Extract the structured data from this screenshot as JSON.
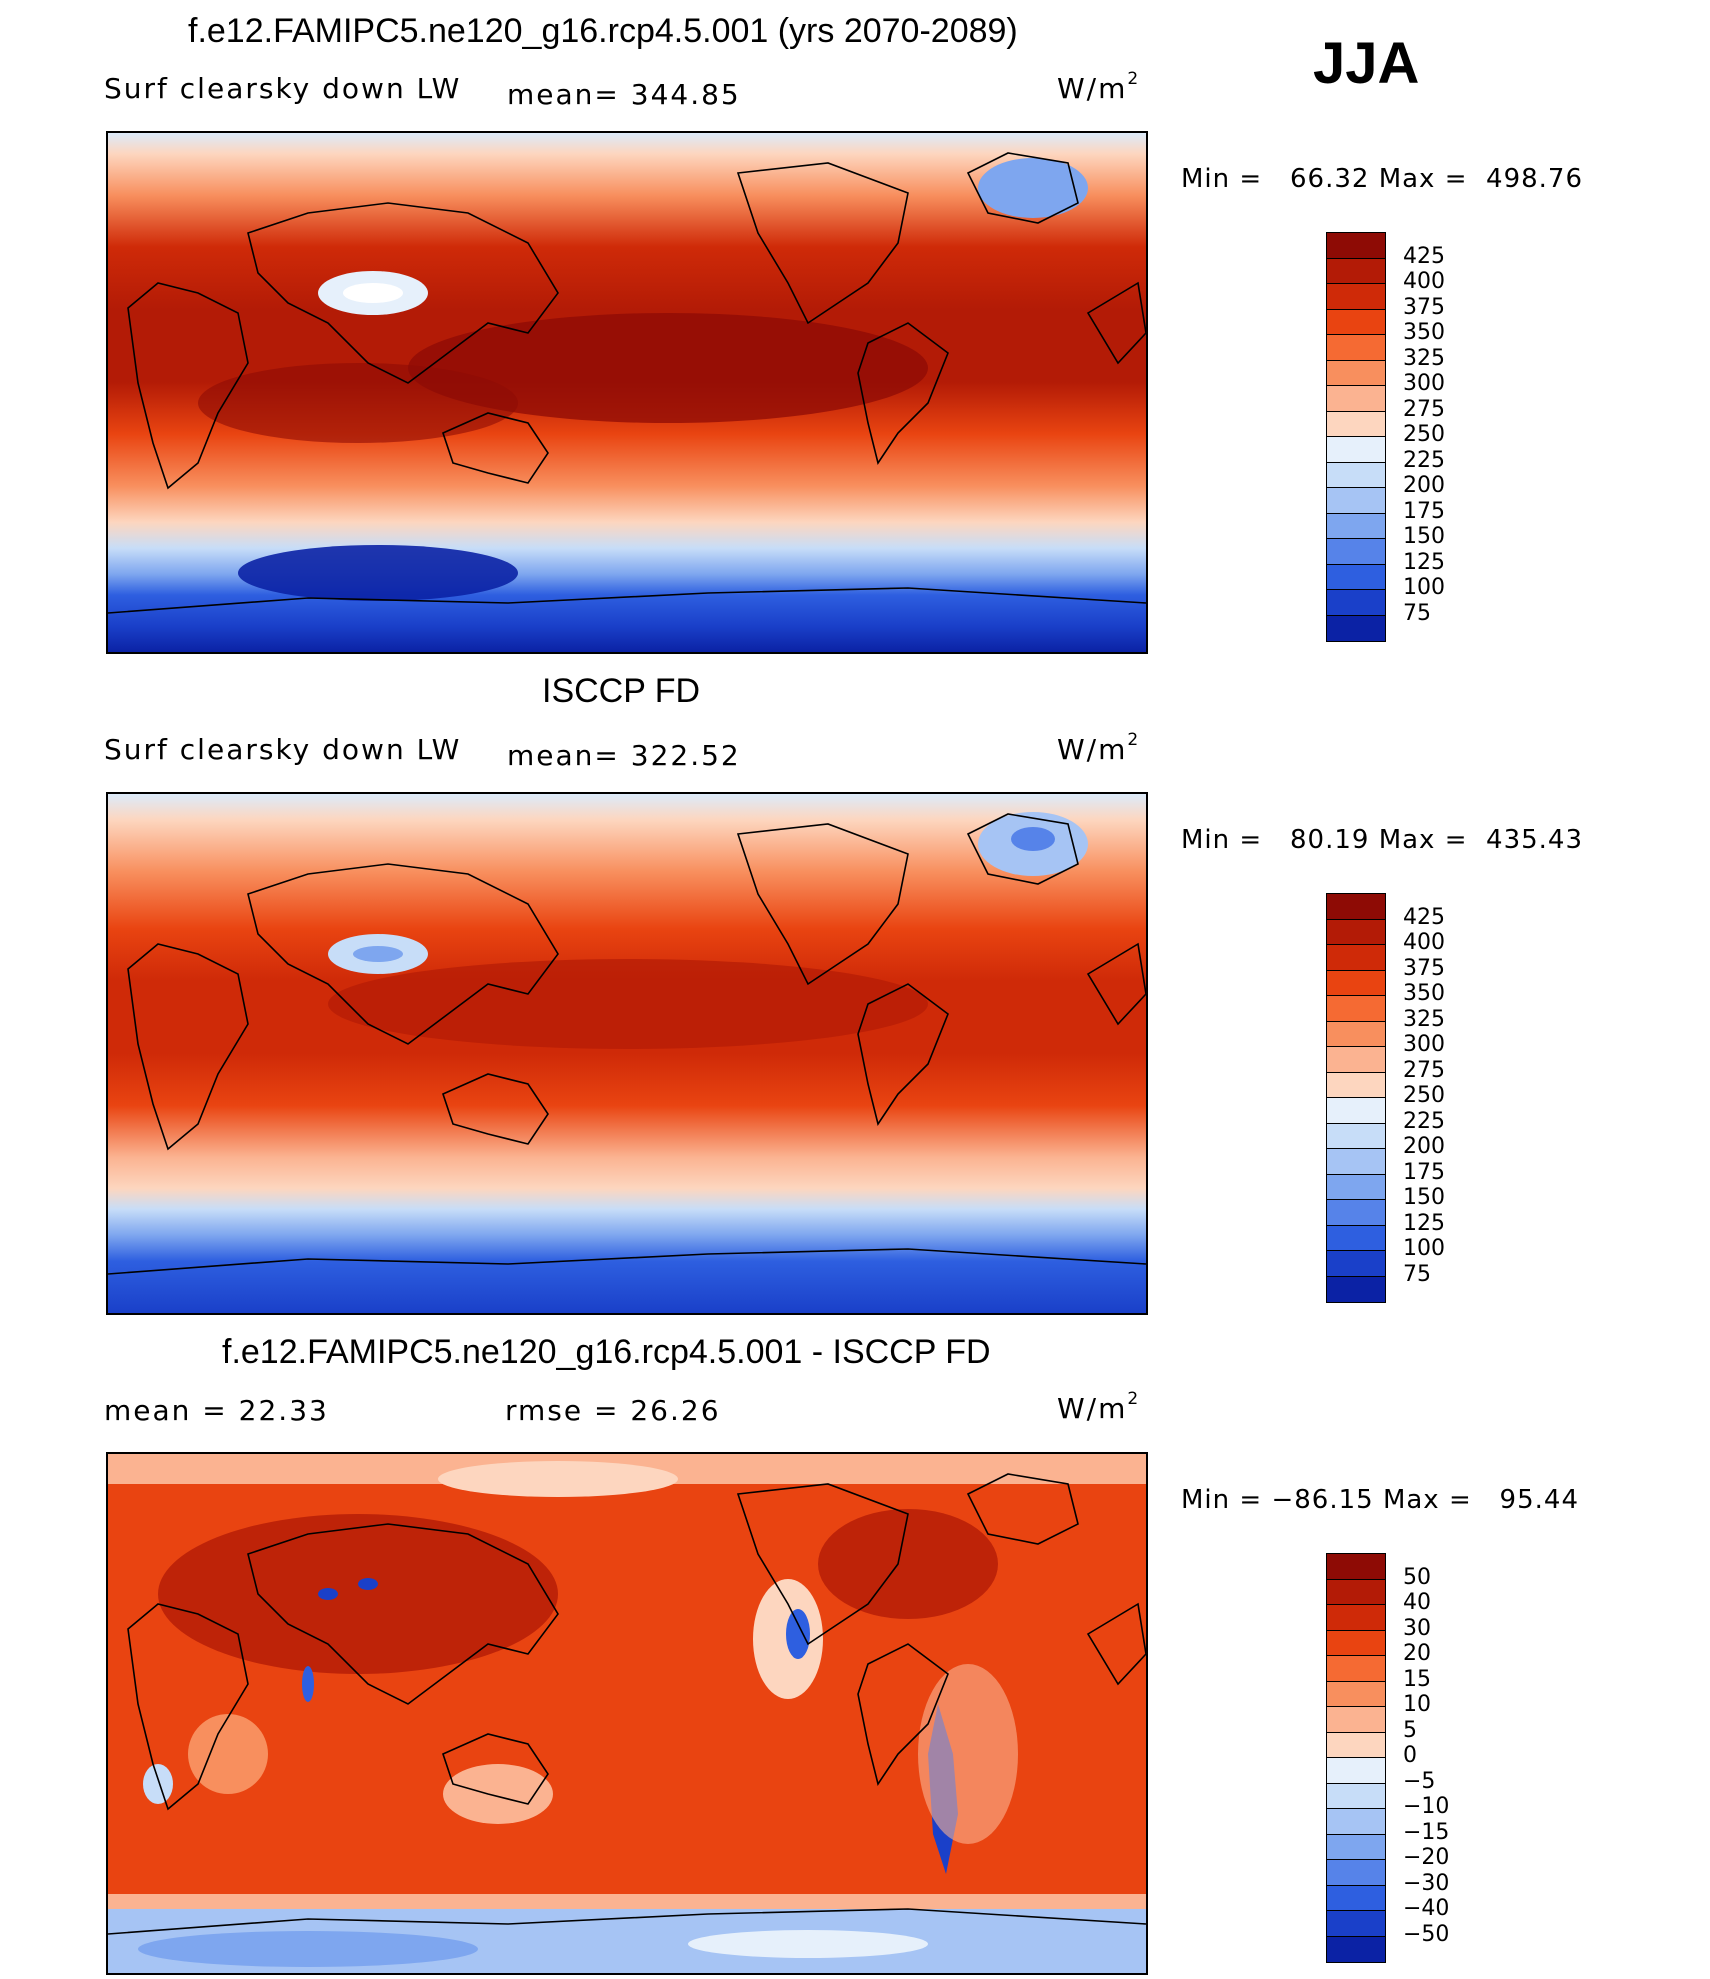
{
  "season": "JJA",
  "panels": [
    {
      "title": "f.e12.FAMIPC5.ne120_g16.rcp4.5.001 (yrs 2070-2089)",
      "left_label": "Surf clearsky down LW",
      "center_label": "mean= 344.85",
      "units_base": "W/m",
      "units_exp": "2",
      "min_label": "Min =",
      "min_value": "66.32",
      "max_label": "Max =",
      "max_value": "498.76",
      "colorbar_labels": [
        "425",
        "400",
        "375",
        "350",
        "325",
        "300",
        "275",
        "250",
        "225",
        "200",
        "175",
        "150",
        "125",
        "100",
        "75"
      ],
      "colorbar_colors": [
        "#8e0b05",
        "#b31b06",
        "#cf2a08",
        "#e94411",
        "#f56a33",
        "#f88f5e",
        "#fbb391",
        "#fdd6bf",
        "#e6f0fb",
        "#c7ddf8",
        "#a6c4f4",
        "#7ea6ef",
        "#5683e9",
        "#2e5fe0",
        "#1a40c9",
        "#0b22a5"
      ]
    },
    {
      "title": "ISCCP FD",
      "left_label": "Surf clearsky down LW",
      "center_label": "mean= 322.52",
      "units_base": "W/m",
      "units_exp": "2",
      "min_label": "Min =",
      "min_value": "80.19",
      "max_label": "Max =",
      "max_value": "435.43",
      "colorbar_labels": [
        "425",
        "400",
        "375",
        "350",
        "325",
        "300",
        "275",
        "250",
        "225",
        "200",
        "175",
        "150",
        "125",
        "100",
        "75"
      ],
      "colorbar_colors": [
        "#8e0b05",
        "#b31b06",
        "#cf2a08",
        "#e94411",
        "#f56a33",
        "#f88f5e",
        "#fbb391",
        "#fdd6bf",
        "#e6f0fb",
        "#c7ddf8",
        "#a6c4f4",
        "#7ea6ef",
        "#5683e9",
        "#2e5fe0",
        "#1a40c9",
        "#0b22a5"
      ]
    },
    {
      "title": "f.e12.FAMIPC5.ne120_g16.rcp4.5.001 - ISCCP FD",
      "left_label": "mean =   22.33",
      "center_label": "rmse =   26.26",
      "units_base": "W/m",
      "units_exp": "2",
      "min_label": "Min =",
      "min_value": "−86.15",
      "max_label": "Max =",
      "max_value": "95.44",
      "colorbar_labels": [
        "50",
        "40",
        "30",
        "20",
        "15",
        "10",
        "5",
        "0",
        "−5",
        "−10",
        "−15",
        "−20",
        "−30",
        "−40",
        "−50"
      ],
      "colorbar_colors": [
        "#8e0b05",
        "#b31b06",
        "#cf2a08",
        "#e94411",
        "#f56a33",
        "#f88f5e",
        "#fbb391",
        "#fdd6bf",
        "#e6f0fb",
        "#c7ddf8",
        "#a6c4f4",
        "#7ea6ef",
        "#5683e9",
        "#2e5fe0",
        "#1a40c9",
        "#0b22a5"
      ]
    }
  ]
}
